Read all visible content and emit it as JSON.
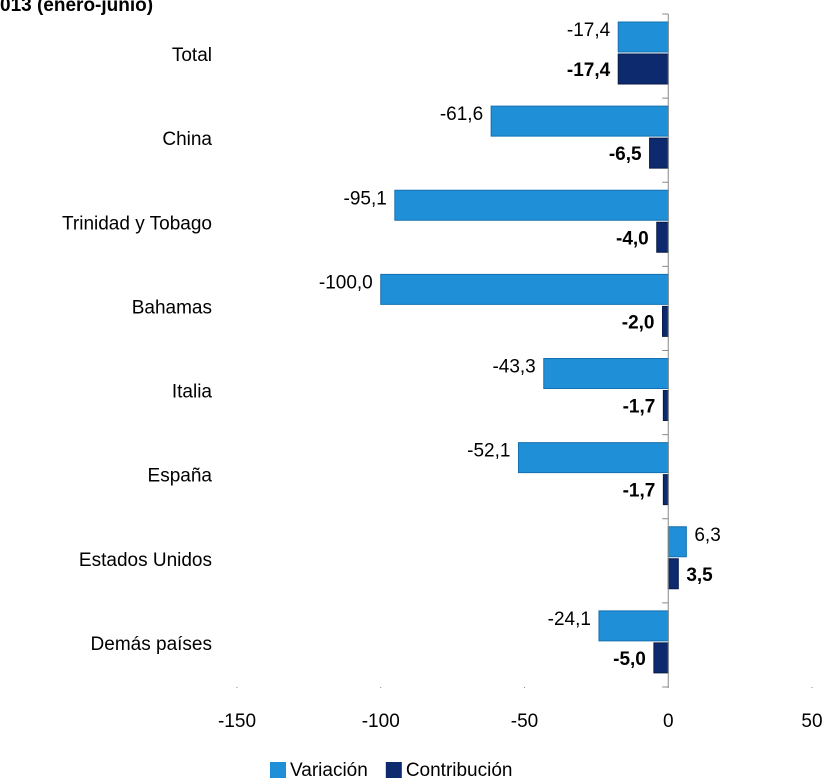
{
  "chart_data": {
    "type": "bar",
    "orientation": "horizontal",
    "title": "013 (enero-junio)",
    "categories": [
      "Total",
      "China",
      "Trinidad y Tobago",
      "Bahamas",
      "Italia",
      "España",
      "Estados Unidos",
      "Demás países"
    ],
    "series": [
      {
        "name": "Variación",
        "color": "#1f8fd8",
        "values": [
          -17.4,
          -61.6,
          -95.1,
          -100.0,
          -43.3,
          -52.1,
          6.3,
          -24.1
        ],
        "value_labels": [
          "-17,4",
          "-61,6",
          "-95,1",
          "-100,0",
          "-43,3",
          "-52,1",
          "6,3",
          "-24,1"
        ]
      },
      {
        "name": "Contribución",
        "color": "#0e2a6e",
        "values": [
          -17.4,
          -6.5,
          -4.0,
          -2.0,
          -1.7,
          -1.7,
          3.5,
          -5.0
        ],
        "value_labels": [
          "-17,4",
          "-6,5",
          "-4,0",
          "-2,0",
          "-1,7",
          "-1,7",
          "3,5",
          "-5,0"
        ]
      }
    ],
    "xlim": [
      -150,
      50
    ],
    "xticks": [
      -150,
      -100,
      -50,
      0,
      50
    ],
    "legend": "bottom"
  }
}
